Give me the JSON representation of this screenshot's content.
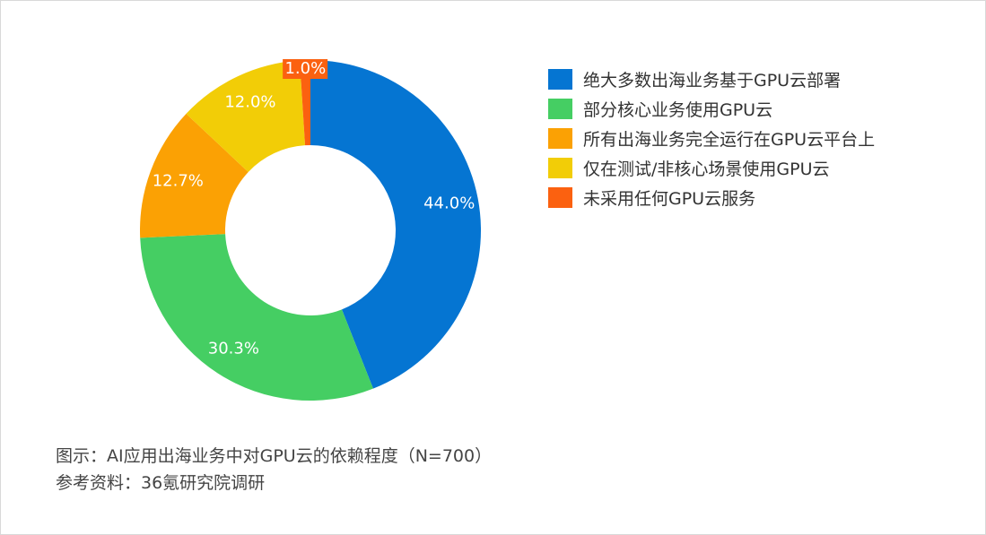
{
  "chart_data": {
    "type": "pie",
    "subtype": "donut",
    "title": "图示：AI应用出海业务中对GPU云的依赖程度（N=700）",
    "source": "参考资料：36氪研究院调研",
    "categories": [
      "绝大多数出海业务基于GPU云部署",
      "部分核心业务使用GPU云",
      "所有出海业务完全运行在GPU云平台上",
      "仅在测试/非核心场景使用GPU云",
      "未采用任何GPU云服务"
    ],
    "values": [
      44.0,
      30.3,
      12.7,
      12.0,
      1.0
    ],
    "labels": [
      "44.0%",
      "30.3%",
      "12.7%",
      "12.0%",
      "1.0%"
    ],
    "colors": [
      "#0575d2",
      "#45ce63",
      "#fba104",
      "#f2cd07",
      "#fb6110"
    ],
    "legend_position": "right",
    "start_angle": "12 o'clock, clockwise"
  },
  "legend": {
    "items": [
      {
        "label": "绝大多数出海业务基于GPU云部署",
        "color": "#0575d2"
      },
      {
        "label": "部分核心业务使用GPU云",
        "color": "#45ce63"
      },
      {
        "label": "所有出海业务完全运行在GPU云平台上",
        "color": "#fba104"
      },
      {
        "label": "仅在测试/非核心场景使用GPU云",
        "color": "#f2cd07"
      },
      {
        "label": "未采用任何GPU云服务",
        "color": "#fb6110"
      }
    ]
  },
  "caption": {
    "title": "图示：AI应用出海业务中对GPU云的依赖程度（N=700）",
    "source": "参考资料：36氪研究院调研"
  }
}
